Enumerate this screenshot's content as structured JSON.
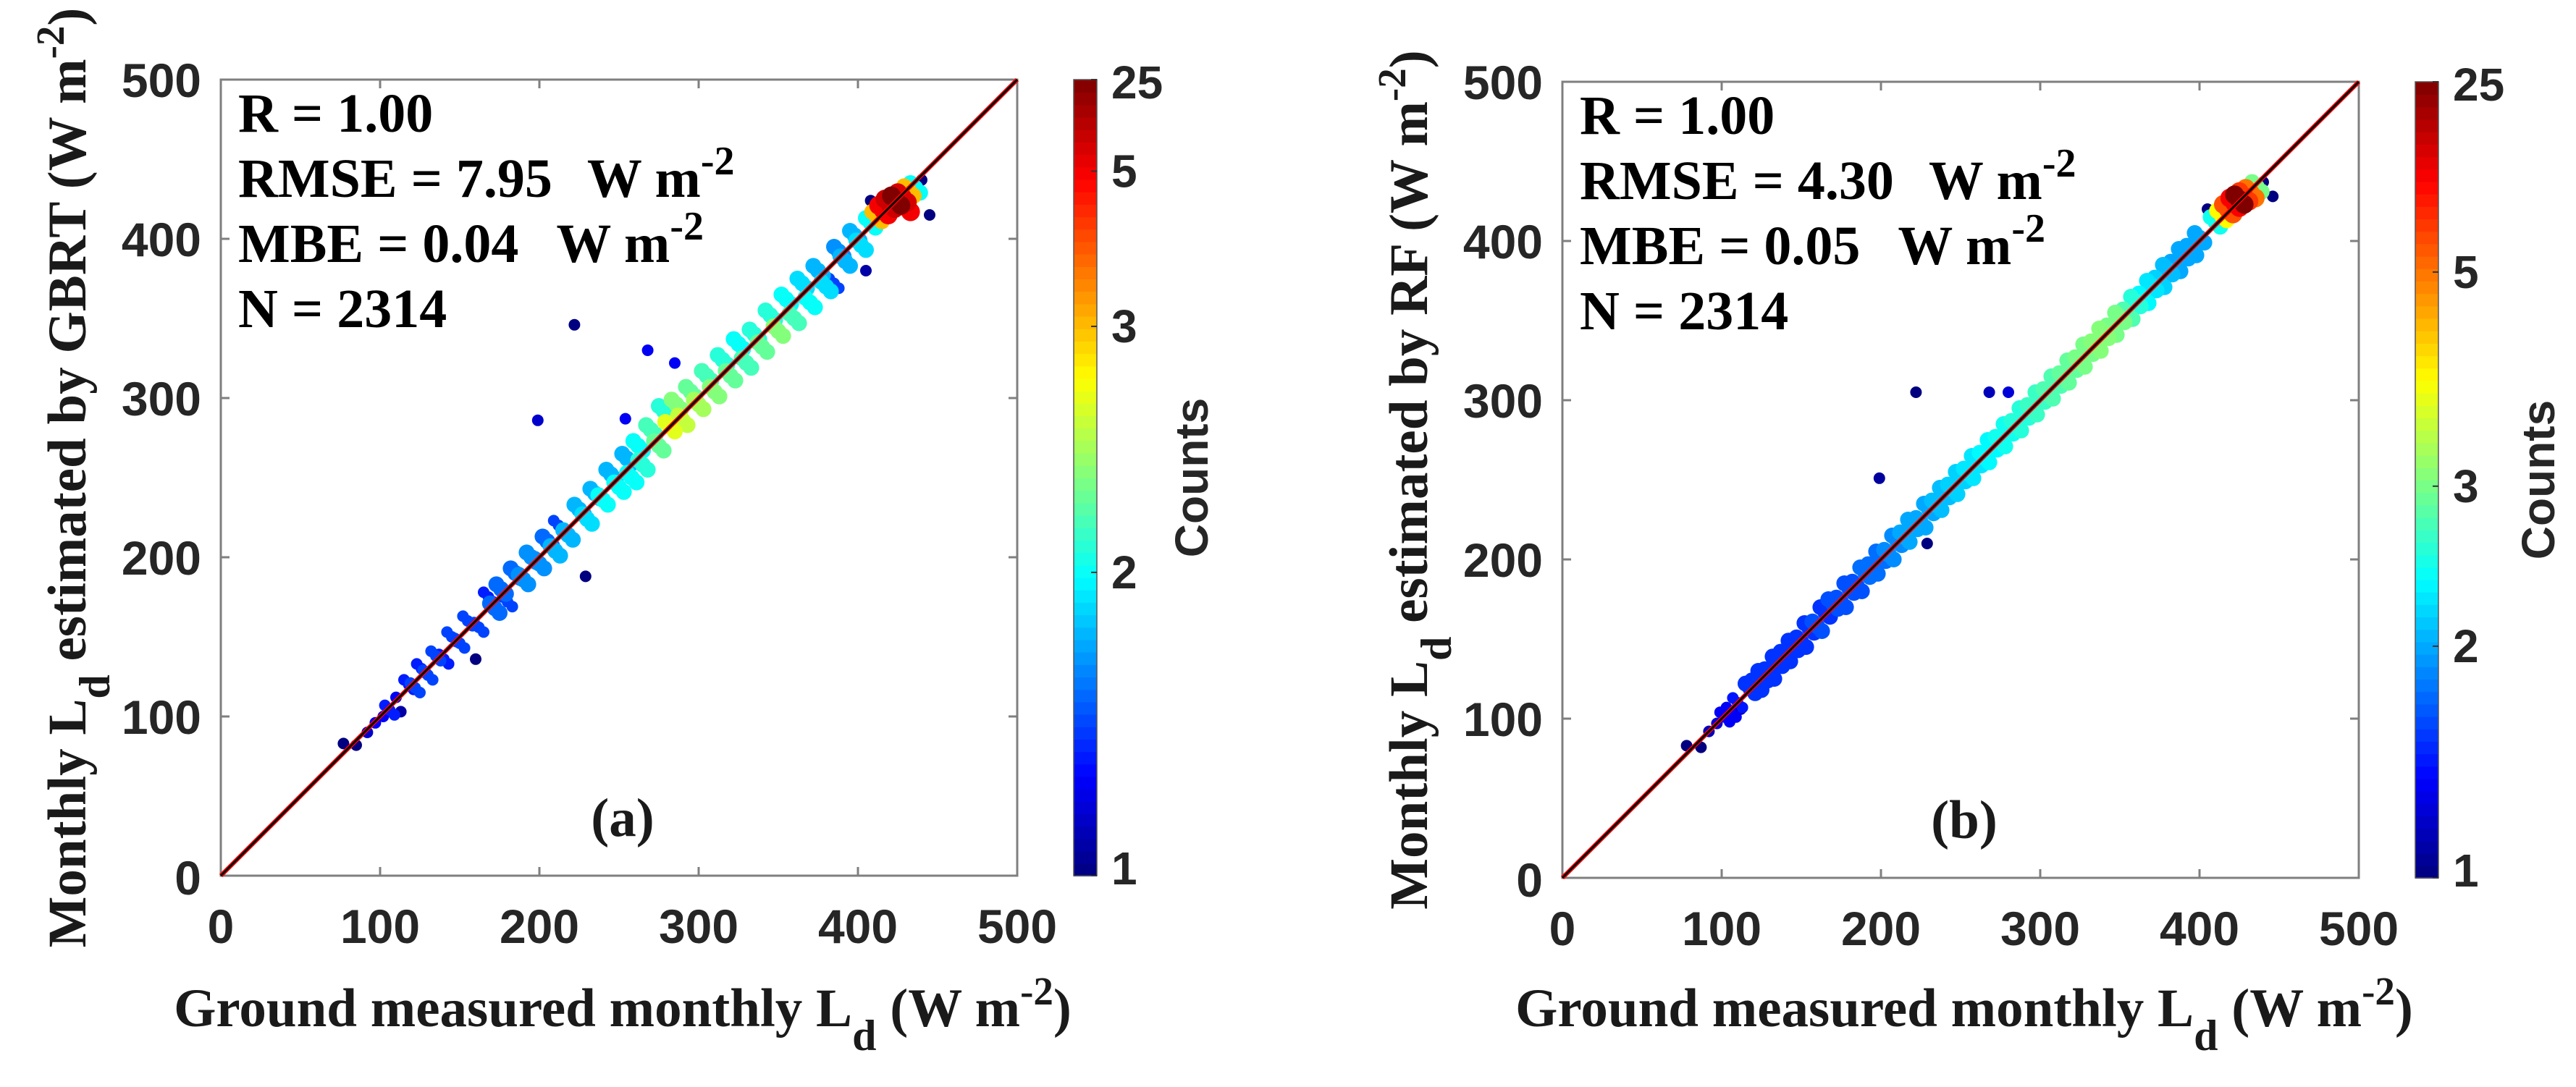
{
  "chart_data": [
    {
      "type": "scatter",
      "subtype": "density scatter",
      "panel_label": "(a)",
      "xlabel": {
        "pre": "Ground measured monthly L",
        "sub": "d",
        "mid": " (W m",
        "sup": "-2",
        "post": ")"
      },
      "ylabel": {
        "pre": "Monthly L",
        "sub": "d",
        "mid": " estimated by GBRT (W m",
        "sup": "-2",
        "post": ")"
      },
      "xlim": [
        0,
        500
      ],
      "ylim": [
        0,
        500
      ],
      "xticks": [
        "0",
        "100",
        "200",
        "300",
        "400",
        "500"
      ],
      "yticks": [
        "0",
        "100",
        "200",
        "300",
        "400",
        "500"
      ],
      "grid": false,
      "stats": {
        "r": "R = 1.00",
        "rmse": "RMSE = 7.95",
        "rmse_unit": "W m",
        "rmse_sup": "-2",
        "mbe": "MBE = 0.04",
        "mbe_unit": "W m",
        "mbe_sup": "-2",
        "n": "N = 2314"
      },
      "colorbar": {
        "label": "Counts",
        "ticks": [
          "1",
          "2",
          "3",
          "5",
          "25"
        ],
        "values": [
          1,
          2,
          3,
          5,
          25
        ],
        "colormap": "jet"
      },
      "reference_lines": [
        {
          "slope": 1,
          "intercept": 0,
          "color": "#ff0000"
        },
        {
          "slope": 1,
          "intercept": 0,
          "color": "#000000"
        }
      ],
      "points": [
        [
          77,
          83,
          1
        ],
        [
          85,
          82,
          1
        ],
        [
          92,
          90,
          1.2
        ],
        [
          97,
          96,
          1.3
        ],
        [
          102,
          100,
          1.3
        ],
        [
          106,
          104,
          1.4
        ],
        [
          110,
          112,
          1.3
        ],
        [
          113,
          103,
          1.1
        ],
        [
          118,
          120,
          1.4
        ],
        [
          122,
          118,
          1.5
        ],
        [
          126,
          130,
          1.4
        ],
        [
          130,
          126,
          1.5
        ],
        [
          135,
          138,
          1.5
        ],
        [
          140,
          136,
          1.4
        ],
        [
          145,
          150,
          1.5
        ],
        [
          150,
          146,
          1.5
        ],
        [
          155,
          160,
          1.5
        ],
        [
          160,
          136,
          1
        ],
        [
          162,
          156,
          1.5
        ],
        [
          168,
          175,
          1.4
        ],
        [
          172,
          168,
          1.6
        ],
        [
          176,
          180,
          1.6
        ],
        [
          180,
          172,
          1.5
        ],
        [
          185,
          190,
          1.6
        ],
        [
          190,
          186,
          1.7
        ],
        [
          195,
          200,
          1.7
        ],
        [
          199,
          286,
          1.2
        ],
        [
          200,
          196,
          1.7
        ],
        [
          205,
          210,
          1.6
        ],
        [
          210,
          204,
          1.8
        ],
        [
          212,
          220,
          1.5
        ],
        [
          218,
          214,
          1.8
        ],
        [
          222,
          346,
          1
        ],
        [
          225,
          230,
          1.8
        ],
        [
          229,
          188,
          1
        ],
        [
          230,
          224,
          1.9
        ],
        [
          235,
          240,
          1.8
        ],
        [
          240,
          236,
          2
        ],
        [
          245,
          252,
          1.8
        ],
        [
          250,
          244,
          2
        ],
        [
          254,
          287,
          1.3
        ],
        [
          255,
          262,
          1.8
        ],
        [
          258,
          250,
          2
        ],
        [
          262,
          270,
          2
        ],
        [
          265,
          258,
          2.1
        ],
        [
          268,
          330,
          1.3
        ],
        [
          270,
          280,
          2.2
        ],
        [
          275,
          270,
          2.3
        ],
        [
          278,
          292,
          2.1
        ],
        [
          282,
          282,
          2.7
        ],
        [
          285,
          322,
          1.3
        ],
        [
          286,
          296,
          2.4
        ],
        [
          290,
          286,
          2.6
        ],
        [
          295,
          304,
          2.3
        ],
        [
          300,
          296,
          2.5
        ],
        [
          305,
          314,
          2.2
        ],
        [
          310,
          304,
          2.4
        ],
        [
          315,
          324,
          2.1
        ],
        [
          320,
          314,
          2.3
        ],
        [
          325,
          334,
          2
        ],
        [
          330,
          322,
          2.2
        ],
        [
          335,
          340,
          2.1
        ],
        [
          340,
          332,
          2.3
        ],
        [
          345,
          352,
          2.1
        ],
        [
          350,
          342,
          2.4
        ],
        [
          355,
          362,
          2
        ],
        [
          360,
          350,
          2.2
        ],
        [
          365,
          372,
          1.9
        ],
        [
          370,
          360,
          2
        ],
        [
          375,
          380,
          1.8
        ],
        [
          380,
          370,
          1.9
        ],
        [
          385,
          372,
          1.5
        ],
        [
          388,
          392,
          1.7
        ],
        [
          392,
          386,
          1.8
        ],
        [
          398,
          402,
          1.8
        ],
        [
          402,
          396,
          1.9
        ],
        [
          405,
          380,
          1.1
        ],
        [
          408,
          410,
          2
        ],
        [
          408,
          424,
          1
        ],
        [
          412,
          414,
          3
        ],
        [
          416,
          418,
          5
        ],
        [
          420,
          422,
          12
        ],
        [
          424,
          424,
          25
        ],
        [
          428,
          426,
          10
        ],
        [
          430,
          420,
          5
        ],
        [
          432,
          430,
          3
        ],
        [
          436,
          432,
          2
        ],
        [
          440,
          437,
          1
        ],
        [
          445,
          415,
          1
        ]
      ]
    },
    {
      "type": "scatter",
      "subtype": "density scatter",
      "panel_label": "(b)",
      "xlabel": {
        "pre": "Ground measured monthly L",
        "sub": "d",
        "mid": " (W m",
        "sup": "-2",
        "post": ")"
      },
      "ylabel": {
        "pre": "Monthly L",
        "sub": "d",
        "mid": " estimated by RF (W m",
        "sup": "-2",
        "post": ")"
      },
      "xlim": [
        0,
        500
      ],
      "ylim": [
        0,
        500
      ],
      "xticks": [
        "0",
        "100",
        "200",
        "300",
        "400",
        "500"
      ],
      "yticks": [
        "0",
        "100",
        "200",
        "300",
        "400",
        "500"
      ],
      "grid": false,
      "stats": {
        "r": "R = 1.00",
        "rmse": "RMSE = 4.30",
        "rmse_unit": "W m",
        "rmse_sup": "-2",
        "mbe": "MBE = 0.05",
        "mbe_unit": "W m",
        "mbe_sup": "-2",
        "n": "N = 2314"
      },
      "colorbar": {
        "label": "Counts",
        "ticks": [
          "1",
          "2",
          "3",
          "5",
          "25"
        ],
        "values": [
          1,
          2,
          3,
          5,
          25
        ],
        "colormap": "jet"
      },
      "reference_lines": [
        {
          "slope": 1,
          "intercept": 0,
          "color": "#ff0000"
        },
        {
          "slope": 1,
          "intercept": 0,
          "color": "#000000"
        }
      ],
      "points": [
        [
          78,
          83,
          1
        ],
        [
          87,
          82,
          1
        ],
        [
          92,
          92,
          1.2
        ],
        [
          97,
          97,
          1.3
        ],
        [
          102,
          101,
          1.4
        ],
        [
          106,
          104,
          1.4
        ],
        [
          110,
          110,
          1.5
        ],
        [
          112,
          106,
          1.1
        ],
        [
          118,
          119,
          1.6
        ],
        [
          122,
          121,
          1.6
        ],
        [
          126,
          127,
          1.6
        ],
        [
          130,
          128,
          1.6
        ],
        [
          135,
          136,
          1.6
        ],
        [
          140,
          139,
          1.6
        ],
        [
          145,
          146,
          1.6
        ],
        [
          150,
          148,
          1.6
        ],
        [
          155,
          157,
          1.6
        ],
        [
          160,
          158,
          1.7
        ],
        [
          165,
          167,
          1.6
        ],
        [
          170,
          172,
          1.7
        ],
        [
          175,
          173,
          1.7
        ],
        [
          180,
          182,
          1.7
        ],
        [
          185,
          183,
          1.7
        ],
        [
          190,
          192,
          1.8
        ],
        [
          195,
          194,
          1.8
        ],
        [
          199,
          251,
          1.1
        ],
        [
          200,
          202,
          1.8
        ],
        [
          205,
          203,
          1.9
        ],
        [
          210,
          212,
          1.9
        ],
        [
          215,
          214,
          2
        ],
        [
          220,
          222,
          2
        ],
        [
          222,
          305,
          1
        ],
        [
          225,
          223,
          2
        ],
        [
          229,
          210,
          1
        ],
        [
          230,
          232,
          2
        ],
        [
          235,
          234,
          2.1
        ],
        [
          240,
          242,
          2.1
        ],
        [
          245,
          244,
          2.2
        ],
        [
          250,
          252,
          2.2
        ],
        [
          255,
          254,
          2.3
        ],
        [
          260,
          262,
          2.3
        ],
        [
          265,
          264,
          2.4
        ],
        [
          268,
          305,
          1.2
        ],
        [
          270,
          272,
          2.4
        ],
        [
          275,
          274,
          2.5
        ],
        [
          280,
          282,
          2.5
        ],
        [
          280,
          305,
          1.3
        ],
        [
          285,
          284,
          2.6
        ],
        [
          290,
          292,
          2.6
        ],
        [
          295,
          294,
          2.7
        ],
        [
          300,
          302,
          2.7
        ],
        [
          305,
          304,
          2.8
        ],
        [
          310,
          312,
          2.8
        ],
        [
          315,
          314,
          2.9
        ],
        [
          320,
          322,
          2.9
        ],
        [
          325,
          324,
          3
        ],
        [
          330,
          332,
          3
        ],
        [
          335,
          334,
          3.1
        ],
        [
          340,
          342,
          3.1
        ],
        [
          345,
          344,
          3
        ],
        [
          350,
          352,
          3
        ],
        [
          355,
          354,
          2.8
        ],
        [
          360,
          362,
          2.6
        ],
        [
          365,
          364,
          2.4
        ],
        [
          370,
          372,
          2.3
        ],
        [
          375,
          374,
          2.2
        ],
        [
          380,
          382,
          2.1
        ],
        [
          385,
          384,
          2
        ],
        [
          390,
          392,
          2
        ],
        [
          395,
          394,
          2
        ],
        [
          400,
          402,
          2
        ],
        [
          405,
          420,
          1
        ],
        [
          410,
          412,
          2.5
        ],
        [
          414,
          416,
          4
        ],
        [
          418,
          420,
          8
        ],
        [
          422,
          424,
          15
        ],
        [
          425,
          426,
          25
        ],
        [
          428,
          428,
          10
        ],
        [
          432,
          430,
          5
        ],
        [
          436,
          434,
          3
        ],
        [
          440,
          437,
          1
        ],
        [
          446,
          428,
          1
        ]
      ]
    }
  ]
}
